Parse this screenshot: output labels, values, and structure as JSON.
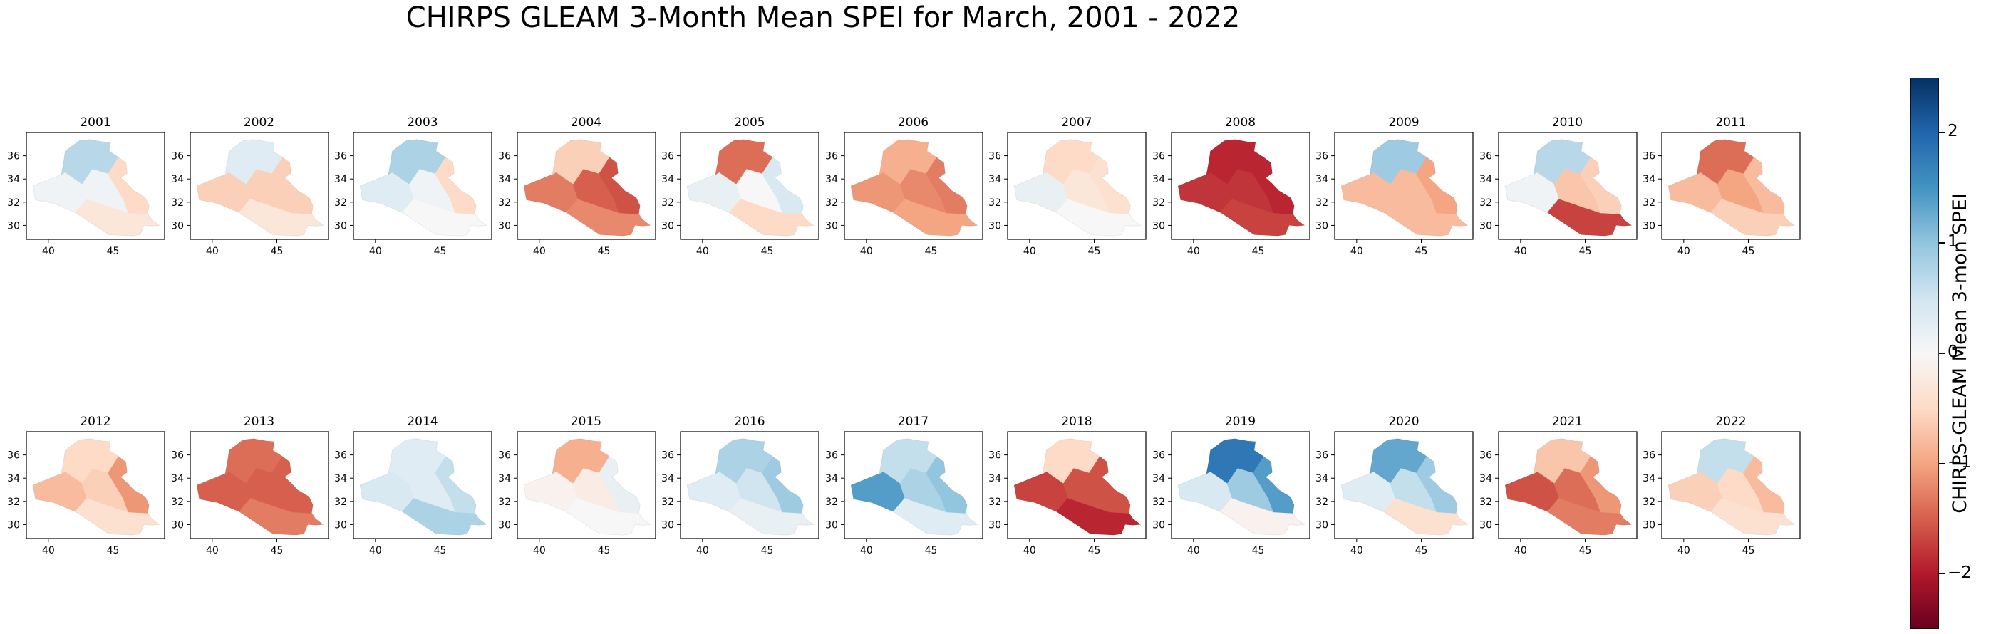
{
  "title": "CHIRPS GLEAM 3-Month Mean SPEI for March, 2001 - 2022",
  "colorbar": {
    "label": "CHIRPS-GLEAM Mean 3-mon SPEI",
    "min": -2.5,
    "max": 2.5,
    "ticks": [
      "2",
      "1",
      "0",
      "−1",
      "−2"
    ],
    "tick_values": [
      2,
      1,
      0,
      -1,
      -2
    ],
    "colormap": "RdBu"
  },
  "axes": {
    "x_ticks": [
      "40",
      "45"
    ],
    "x_tick_values": [
      40,
      45
    ],
    "y_ticks": [
      "36",
      "34",
      "32",
      "30"
    ],
    "y_tick_values": [
      36,
      34,
      32,
      30
    ],
    "xlim": [
      38.3,
      49.0
    ],
    "ylim": [
      28.8,
      38.0
    ]
  },
  "panels": [
    {
      "year": "2001",
      "spei": {
        "north": 0.7,
        "east": -0.5,
        "center": 0.1,
        "west": 0.1,
        "south": -0.3
      }
    },
    {
      "year": "2002",
      "spei": {
        "north": 0.3,
        "east": -0.6,
        "center": -0.6,
        "west": -0.6,
        "south": -0.3
      }
    },
    {
      "year": "2003",
      "spei": {
        "north": 0.8,
        "east": -0.5,
        "center": 0.1,
        "west": 0.3,
        "south": 0.0
      }
    },
    {
      "year": "2004",
      "spei": {
        "north": -0.6,
        "east": -1.6,
        "center": -1.5,
        "west": -1.3,
        "south": -1.2
      }
    },
    {
      "year": "2005",
      "spei": {
        "north": -1.4,
        "east": 0.4,
        "center": 0.0,
        "west": 0.2,
        "south": -0.5
      }
    },
    {
      "year": "2006",
      "spei": {
        "north": -0.9,
        "east": -1.3,
        "center": -1.2,
        "west": -1.1,
        "south": -1.0
      }
    },
    {
      "year": "2007",
      "spei": {
        "north": -0.5,
        "east": -0.4,
        "center": -0.3,
        "west": 0.2,
        "south": 0.0
      }
    },
    {
      "year": "2008",
      "spei": {
        "north": -1.9,
        "east": -1.9,
        "center": -1.8,
        "west": -1.8,
        "south": -1.7
      }
    },
    {
      "year": "2009",
      "spei": {
        "north": 0.9,
        "east": -1.0,
        "center": -0.8,
        "west": -0.8,
        "south": -0.8
      }
    },
    {
      "year": "2010",
      "spei": {
        "north": 0.7,
        "east": -0.6,
        "center": -0.7,
        "west": 0.1,
        "south": -1.7
      }
    },
    {
      "year": "2011",
      "spei": {
        "north": -1.4,
        "east": -0.8,
        "center": -1.0,
        "west": -0.8,
        "south": -0.6
      }
    },
    {
      "year": "2012",
      "spei": {
        "north": -0.5,
        "east": -1.1,
        "center": -0.6,
        "west": -0.8,
        "south": -0.4
      }
    },
    {
      "year": "2013",
      "spei": {
        "north": -1.4,
        "east": -1.5,
        "center": -1.5,
        "west": -1.5,
        "south": -1.3
      }
    },
    {
      "year": "2014",
      "spei": {
        "north": 0.3,
        "east": 0.6,
        "center": 0.3,
        "west": 0.4,
        "south": 0.8
      }
    },
    {
      "year": "2015",
      "spei": {
        "north": -0.9,
        "east": 0.2,
        "center": -0.2,
        "west": -0.1,
        "south": 0.0
      }
    },
    {
      "year": "2016",
      "spei": {
        "north": 0.8,
        "east": 0.9,
        "center": 0.5,
        "west": 0.3,
        "south": 0.2
      }
    },
    {
      "year": "2017",
      "spei": {
        "north": 0.6,
        "east": 1.0,
        "center": 0.8,
        "west": 1.4,
        "south": 0.3
      }
    },
    {
      "year": "2018",
      "spei": {
        "north": -0.5,
        "east": -1.6,
        "center": -1.6,
        "west": -1.7,
        "south": -1.9
      }
    },
    {
      "year": "2019",
      "spei": {
        "north": 1.8,
        "east": 1.4,
        "center": 0.9,
        "west": 0.4,
        "south": -0.1
      }
    },
    {
      "year": "2020",
      "spei": {
        "north": 1.3,
        "east": 0.9,
        "center": 0.6,
        "west": 0.3,
        "south": -0.4
      }
    },
    {
      "year": "2021",
      "spei": {
        "north": -0.7,
        "east": -1.1,
        "center": -1.4,
        "west": -1.6,
        "south": -1.3
      }
    },
    {
      "year": "2022",
      "spei": {
        "north": 0.6,
        "east": -0.8,
        "center": -0.5,
        "west": -0.6,
        "south": -0.4
      }
    }
  ]
}
